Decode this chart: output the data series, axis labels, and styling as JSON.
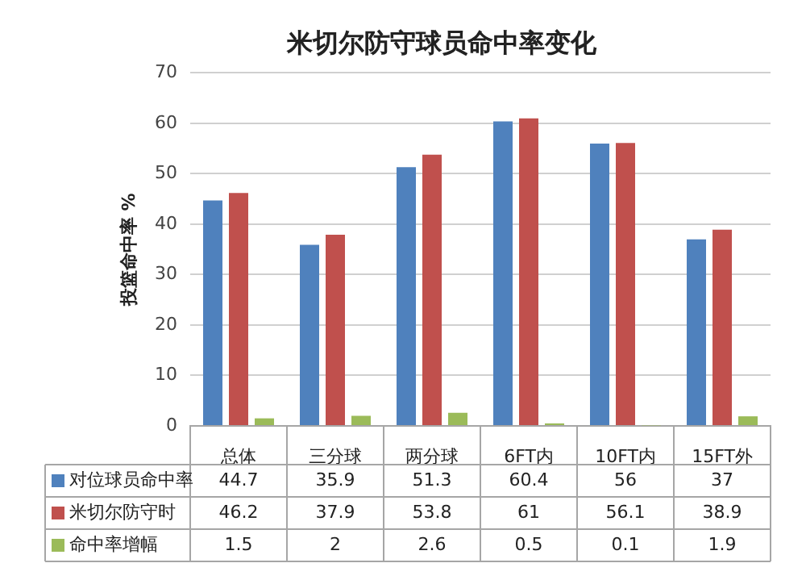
{
  "chart_data": {
    "type": "bar",
    "title": "米切尔防守球员命中率变化",
    "ylabel": "投篮命中率 %",
    "categories": [
      "总体",
      "三分球",
      "两分球",
      "6FT内",
      "10FT内",
      "15FT外"
    ],
    "series": [
      {
        "name": "对位球员命中率",
        "color": "#4f81bd",
        "values": [
          44.7,
          35.9,
          51.3,
          60.4,
          56,
          37
        ]
      },
      {
        "name": "米切尔防守时",
        "color": "#c0504d",
        "values": [
          46.2,
          37.9,
          53.8,
          61,
          56.1,
          38.9
        ]
      },
      {
        "name": "命中率增幅",
        "color": "#9bbb59",
        "values": [
          1.5,
          2,
          2.6,
          0.5,
          0.1,
          1.9
        ]
      }
    ],
    "ylim": [
      0,
      70
    ],
    "yticks": [
      0,
      10,
      20,
      30,
      40,
      50,
      60,
      70
    ],
    "grid": "y",
    "legend": "bottom",
    "data_labels": true
  }
}
